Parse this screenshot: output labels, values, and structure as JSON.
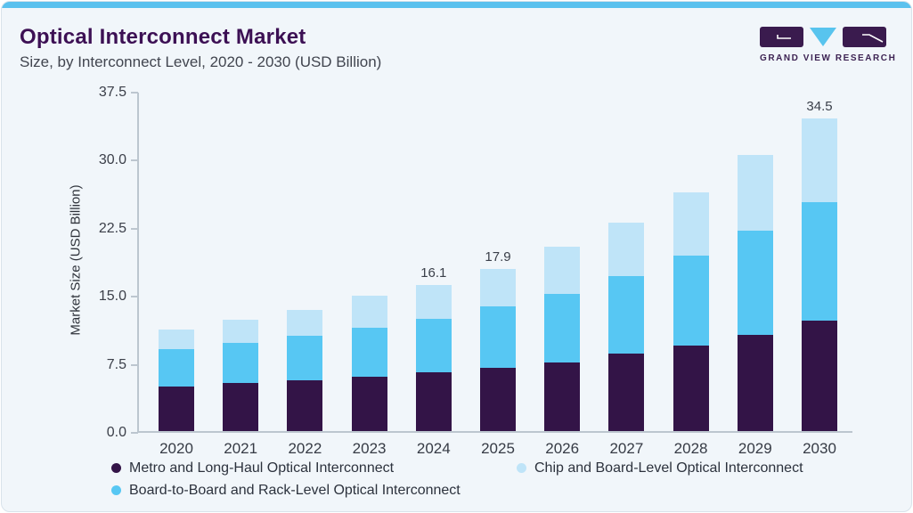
{
  "header": {
    "title": "Optical Interconnect Market",
    "subtitle": "Size, by Interconnect Level, 2020 - 2030 (USD Billion)"
  },
  "logo": {
    "text": "GRAND VIEW RESEARCH"
  },
  "colors": {
    "accent_bar": "#5ac1ee",
    "card_bg": "#f1f6fa",
    "card_border": "#d9e3eb",
    "title": "#3c1054",
    "axis_line": "#bcc6cf",
    "logo_purple": "#3a1b4e",
    "logo_blue": "#58c4ee"
  },
  "chart_data": {
    "type": "bar",
    "variant": "stacked",
    "title": "Optical Interconnect Market",
    "subtitle": "Size, by Interconnect Level, 2020 - 2030 (USD Billion)",
    "xlabel": "",
    "ylabel": "Market Size (USD Billion)",
    "ylim": [
      0,
      37.5
    ],
    "yticks": [
      "0.0",
      "7.5",
      "15.0",
      "22.5",
      "30.0",
      "37.5"
    ],
    "grid": false,
    "legend_position": "bottom-left",
    "categories": [
      "2020",
      "2021",
      "2022",
      "2023",
      "2024",
      "2025",
      "2026",
      "2027",
      "2028",
      "2029",
      "2030"
    ],
    "series": [
      {
        "name": "Metro and Long-Haul Optical Interconnect",
        "color": "#331447",
        "values": [
          4.9,
          5.3,
          5.6,
          6.0,
          6.5,
          7.0,
          7.6,
          8.5,
          9.4,
          10.6,
          12.2
        ]
      },
      {
        "name": "Board-to-Board and Rack-Level Optical Interconnect",
        "color": "#57c7f3",
        "values": [
          4.1,
          4.4,
          4.9,
          5.4,
          5.9,
          6.7,
          7.5,
          8.6,
          9.9,
          11.5,
          13.0
        ]
      },
      {
        "name": "Chip and Board-Level Optical Interconnect",
        "color": "#bfe4f8",
        "values": [
          2.2,
          2.6,
          2.9,
          3.5,
          3.7,
          4.2,
          5.2,
          5.9,
          7.0,
          8.3,
          9.3
        ]
      }
    ],
    "totals": [
      11.2,
      12.3,
      13.4,
      14.9,
      16.1,
      17.9,
      20.3,
      23.0,
      26.3,
      30.4,
      34.5
    ],
    "bar_labels": [
      "",
      "",
      "",
      "",
      "16.1",
      "17.9",
      "",
      "",
      "",
      "",
      "34.5"
    ],
    "legend_rows": [
      [
        0,
        2
      ],
      [
        1
      ]
    ]
  }
}
